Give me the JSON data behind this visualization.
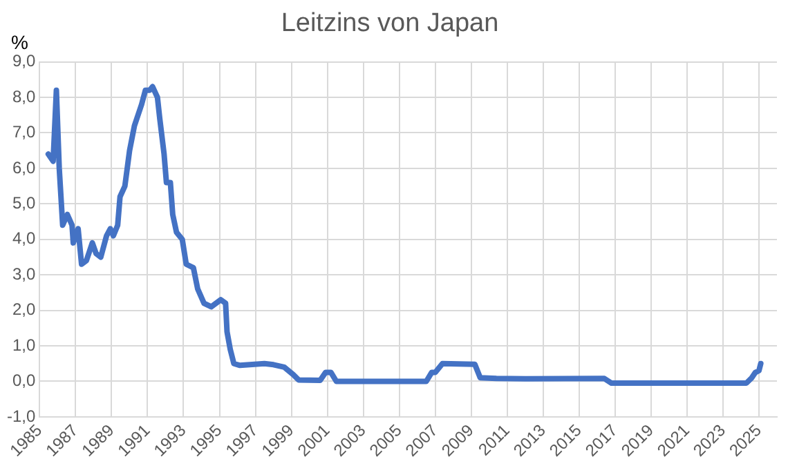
{
  "chart_data": {
    "type": "line",
    "title": "Leitzins von Japan",
    "ylabel": "%",
    "x": [
      1985.48,
      1985.75,
      1985.93,
      1986.09,
      1986.28,
      1986.54,
      1986.8,
      1986.87,
      1987.14,
      1987.33,
      1987.6,
      1987.93,
      1988.14,
      1988.4,
      1988.72,
      1988.93,
      1989.1,
      1989.34,
      1989.47,
      1989.74,
      1990.0,
      1990.27,
      1990.67,
      1990.88,
      1991.12,
      1991.28,
      1991.55,
      1991.68,
      1991.92,
      1992.05,
      1992.27,
      1992.4,
      1992.61,
      1992.93,
      1993.15,
      1993.55,
      1993.79,
      1994.14,
      1994.54,
      1995.07,
      1995.34,
      1995.42,
      1995.6,
      1995.8,
      1996.14,
      1997.5,
      1998.0,
      1998.6,
      1999.1,
      1999.4,
      2000.6,
      2000.9,
      2001.2,
      2001.5,
      2006.5,
      2006.8,
      2007.0,
      2007.4,
      2009.2,
      2009.5,
      2010.4,
      2012.0,
      2016.4,
      2016.8,
      2024.3,
      2024.6,
      2024.8,
      2025.0,
      2025.1
    ],
    "series": [
      {
        "color": "#4472c4",
        "values": [
          6.4,
          6.2,
          8.2,
          6.0,
          4.4,
          4.7,
          4.4,
          3.9,
          4.3,
          3.3,
          3.4,
          3.9,
          3.6,
          3.5,
          4.1,
          4.3,
          4.1,
          4.4,
          5.2,
          5.5,
          6.5,
          7.2,
          7.8,
          8.2,
          8.2,
          8.3,
          8.0,
          7.4,
          6.4,
          5.6,
          5.6,
          4.7,
          4.2,
          4.0,
          3.3,
          3.2,
          2.6,
          2.2,
          2.1,
          2.3,
          2.2,
          1.4,
          0.9,
          0.5,
          0.45,
          0.5,
          0.47,
          0.4,
          0.19,
          0.04,
          0.03,
          0.25,
          0.25,
          0.0,
          0.0,
          0.25,
          0.25,
          0.5,
          0.48,
          0.1,
          0.08,
          0.07,
          0.08,
          -0.05,
          -0.05,
          0.1,
          0.25,
          0.3,
          0.5
        ]
      }
    ],
    "xlim": [
      1985,
      2026
    ],
    "xticks": [
      1985,
      1987,
      1989,
      1991,
      1993,
      1995,
      1997,
      1999,
      2001,
      2003,
      2005,
      2007,
      2009,
      2011,
      2013,
      2015,
      2017,
      2019,
      2021,
      2023,
      2025
    ],
    "ylim": [
      -1,
      9
    ],
    "yticks": [
      {
        "value": -1,
        "label": "-1,0"
      },
      {
        "value": 0,
        "label": "0,0"
      },
      {
        "value": 1,
        "label": "1,0"
      },
      {
        "value": 2,
        "label": "2,0"
      },
      {
        "value": 3,
        "label": "3,0"
      },
      {
        "value": 4,
        "label": "4,0"
      },
      {
        "value": 5,
        "label": "5,0"
      },
      {
        "value": 6,
        "label": "6,0"
      },
      {
        "value": 7,
        "label": "7,0"
      },
      {
        "value": 8,
        "label": "8,0"
      },
      {
        "value": 9,
        "label": "9,0"
      }
    ],
    "grid": true,
    "legend": false,
    "marker": "none",
    "line_style": "solid"
  }
}
